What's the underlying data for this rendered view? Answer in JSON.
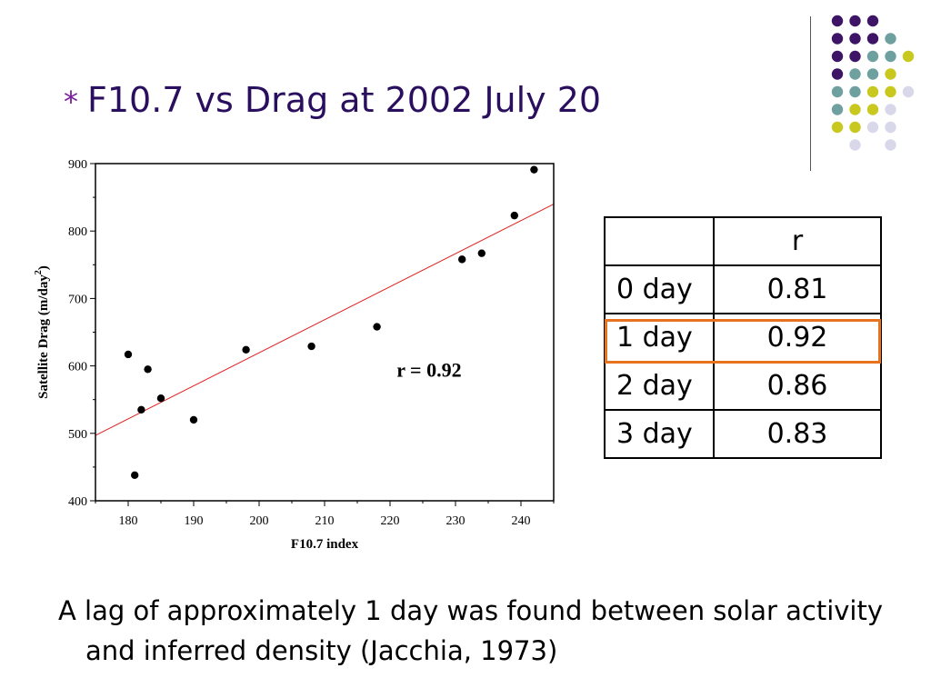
{
  "slide": {
    "title_bullet": "*",
    "title": "F10.7 vs Drag at 2002 July 20",
    "footnote": "A lag of approximately 1 day was found between solar activity and inferred density (Jacchia, 1973)"
  },
  "table": {
    "header": [
      "",
      "r"
    ],
    "rows": [
      {
        "lag": "0 day",
        "r": "0.81"
      },
      {
        "lag": "1 day",
        "r": "0.92"
      },
      {
        "lag": "2 day",
        "r": "0.86"
      },
      {
        "lag": "3 day",
        "r": "0.83"
      }
    ],
    "highlight_row": 1,
    "highlight_color": "#e8731f"
  },
  "decoration": {
    "dot_colors": {
      "purple": "#3d1466",
      "teal": "#6fa0a0",
      "yellow": "#c8c81e",
      "lavender": "#d8d8ea"
    },
    "dot_rows": [
      [
        "",
        "purple",
        "purple",
        "purple",
        ""
      ],
      [
        "",
        "purple",
        "purple",
        "purple",
        "teal"
      ],
      [
        "",
        "purple",
        "purple",
        "teal",
        "teal",
        "yellow"
      ],
      [
        "",
        "purple",
        "teal",
        "teal",
        "yellow",
        ""
      ],
      [
        "",
        "teal",
        "teal",
        "yellow",
        "yellow",
        "lavender"
      ],
      [
        "",
        "teal",
        "yellow",
        "yellow",
        "lavender",
        ""
      ],
      [
        "",
        "yellow",
        "yellow",
        "lavender",
        "lavender",
        ""
      ],
      [
        "",
        "",
        "lavender",
        "",
        "lavender",
        ""
      ]
    ]
  },
  "chart_data": {
    "type": "scatter",
    "title": "",
    "xlabel": "F10.7 index",
    "ylabel": "Satellite Drag (m/day",
    "ylabel_sup": "2",
    "ylabel_close": ")",
    "xlim": [
      175,
      245
    ],
    "ylim": [
      400,
      900
    ],
    "xticks": [
      180,
      190,
      200,
      210,
      220,
      230,
      240
    ],
    "yticks": [
      400,
      500,
      600,
      700,
      800,
      900
    ],
    "annotation": "r = 0.92",
    "annotation_pos": {
      "x": 221,
      "y": 595
    },
    "grid": false,
    "points": [
      {
        "x": 180,
        "y": 617
      },
      {
        "x": 181,
        "y": 438
      },
      {
        "x": 182,
        "y": 535
      },
      {
        "x": 183,
        "y": 595
      },
      {
        "x": 185,
        "y": 552
      },
      {
        "x": 190,
        "y": 520
      },
      {
        "x": 198,
        "y": 624
      },
      {
        "x": 208,
        "y": 629
      },
      {
        "x": 218,
        "y": 658
      },
      {
        "x": 231,
        "y": 758
      },
      {
        "x": 234,
        "y": 767
      },
      {
        "x": 239,
        "y": 823
      },
      {
        "x": 242,
        "y": 891
      }
    ],
    "fit_line": {
      "x": [
        175,
        245
      ],
      "y": [
        497,
        840
      ],
      "color": "#e02020"
    },
    "point_color": "#000000"
  }
}
